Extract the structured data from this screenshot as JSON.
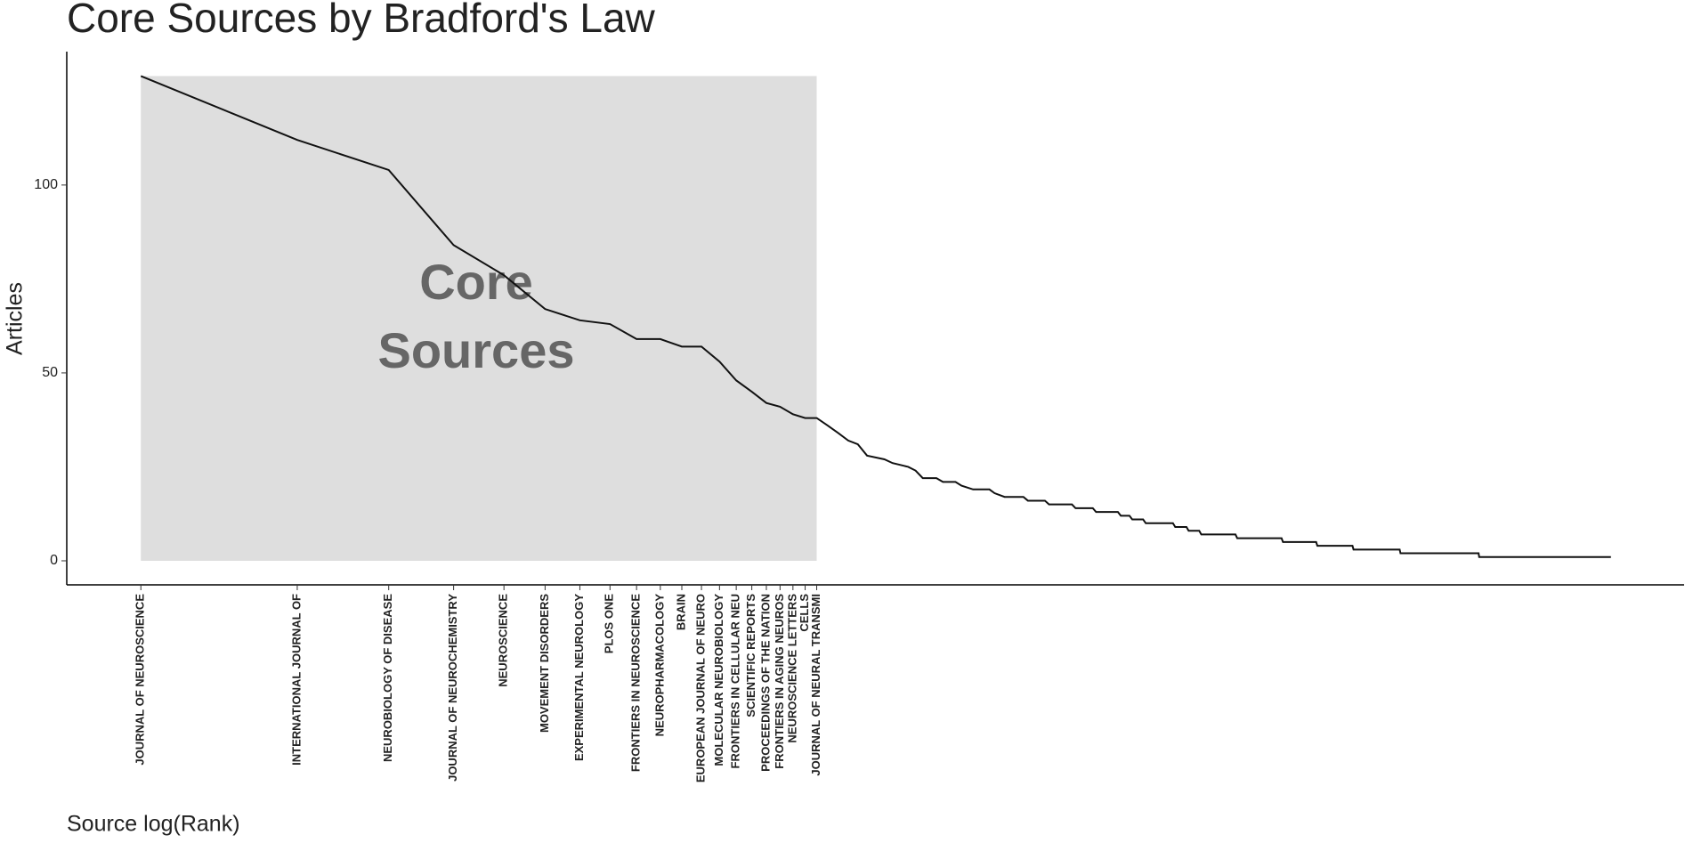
{
  "chart_data": {
    "type": "line",
    "title": "Core Sources by Bradford's Law",
    "x_label": "Source log(Rank)",
    "y_label": "Articles",
    "x_scale": "log",
    "xlim": [
      0.72,
      935
    ],
    "ylim": [
      -6.4,
      135.5
    ],
    "yticks": [
      0,
      50,
      100
    ],
    "xticks": [
      {
        "value": 1,
        "label": "JOURNAL OF NEUROSCIENCE"
      },
      {
        "value": 2,
        "label": "INTERNATIONAL JOURNAL OF"
      },
      {
        "value": 3,
        "label": "NEUROBIOLOGY OF DISEASE"
      },
      {
        "value": 4,
        "label": "JOURNAL OF NEUROCHEMISTRY"
      },
      {
        "value": 5,
        "label": "NEUROSCIENCE"
      },
      {
        "value": 6,
        "label": "MOVEMENT DISORDERS"
      },
      {
        "value": 7,
        "label": "EXPERIMENTAL NEUROLOGY"
      },
      {
        "value": 8,
        "label": "PLOS ONE"
      },
      {
        "value": 9,
        "label": "FRONTIERS IN NEUROSCIENCE"
      },
      {
        "value": 10,
        "label": "NEUROPHARMACOLOGY"
      },
      {
        "value": 11,
        "label": "BRAIN"
      },
      {
        "value": 12,
        "label": "EUROPEAN JOURNAL OF NEURO"
      },
      {
        "value": 13,
        "label": "MOLECULAR NEUROBIOLOGY"
      },
      {
        "value": 14,
        "label": "FRONTIERS IN CELLULAR NEU"
      },
      {
        "value": 15,
        "label": "SCIENTIFIC REPORTS"
      },
      {
        "value": 16,
        "label": "PROCEEDINGS OF THE NATION"
      },
      {
        "value": 17,
        "label": "FRONTIERS IN AGING NEUROS"
      },
      {
        "value": 18,
        "label": "NEUROSCIENCE LETTERS"
      },
      {
        "value": 19,
        "label": "CELLS"
      },
      {
        "value": 20,
        "label": "JOURNAL OF NEURAL TRANSMI"
      }
    ],
    "shade": {
      "xlim": [
        1,
        20
      ],
      "ylim": [
        0,
        129
      ],
      "color": "#dedede",
      "label": [
        "Core",
        "Sources"
      ],
      "label_color": "#666666"
    },
    "color": "#111111",
    "x": [
      1,
      2,
      3,
      4,
      5,
      6,
      7,
      8,
      9,
      10,
      11,
      12,
      13,
      14,
      15,
      16,
      17,
      18,
      19,
      20,
      21,
      22,
      23,
      24,
      25,
      27,
      28,
      30,
      31,
      32,
      34,
      35,
      37,
      38,
      40,
      43,
      44,
      46,
      50,
      51,
      55,
      56,
      62,
      63,
      68,
      69,
      76,
      77,
      80,
      81,
      85,
      86,
      97,
      98,
      103,
      104,
      109,
      110,
      128,
      129,
      157,
      158,
      183,
      184,
      215,
      216,
      265,
      266,
      376,
      377,
      676
    ],
    "values": [
      129,
      112,
      104,
      84,
      76,
      67,
      64,
      63,
      59,
      59,
      57,
      57,
      53,
      48,
      45,
      42,
      41,
      39,
      38,
      38,
      36,
      34,
      32,
      31,
      28,
      27,
      26,
      25,
      24,
      22,
      22,
      21,
      21,
      20,
      19,
      19,
      18,
      17,
      17,
      16,
      16,
      15,
      15,
      14,
      14,
      13,
      13,
      12,
      12,
      11,
      11,
      10,
      10,
      9,
      9,
      8,
      8,
      7,
      7,
      6,
      6,
      5,
      5,
      4,
      4,
      3,
      3,
      2,
      2,
      1,
      1
    ]
  }
}
